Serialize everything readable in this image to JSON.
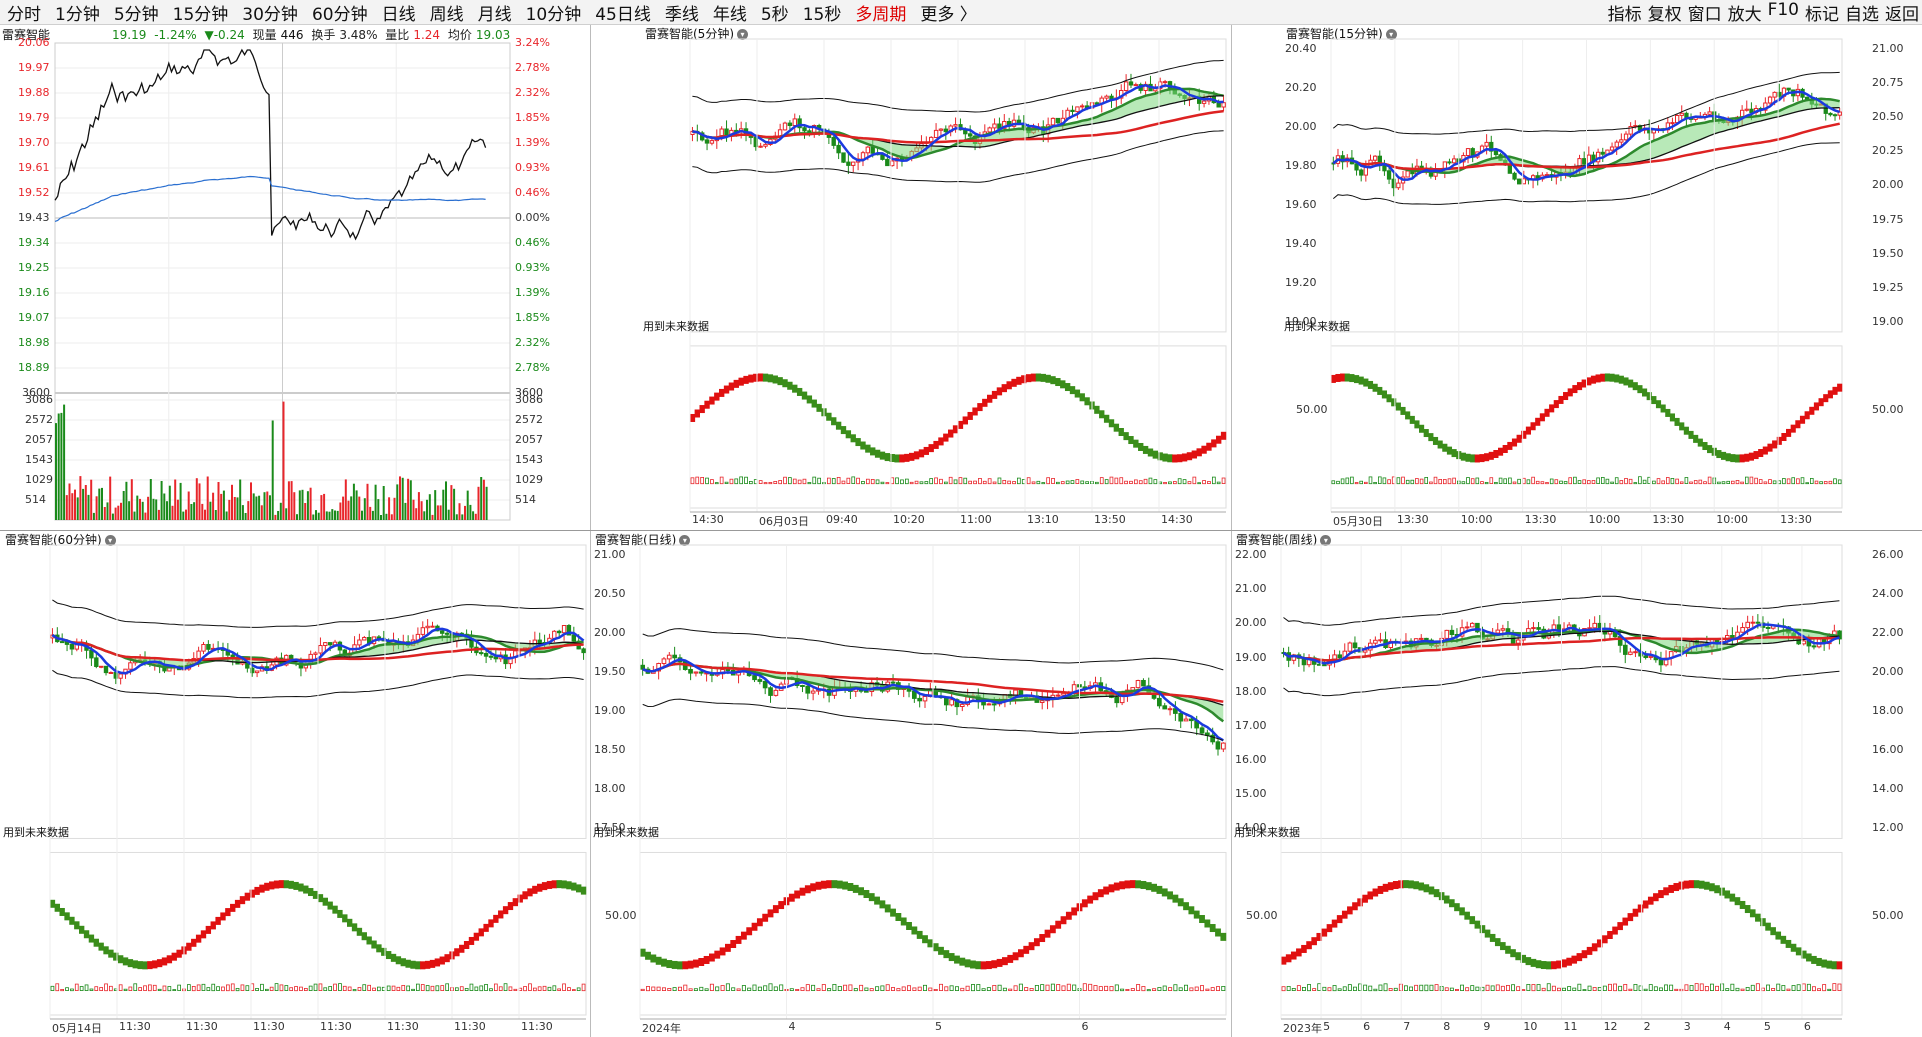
{
  "toolbar": {
    "periods": [
      "分时",
      "1分钟",
      "5分钟",
      "15分钟",
      "30分钟",
      "60分钟",
      "日线",
      "周线",
      "月线",
      "10分钟",
      "45日线",
      "季线",
      "年线",
      "5秒",
      "15秒",
      "多周期",
      "更多 〉"
    ],
    "active_period": "多周期",
    "tools": [
      "指标",
      "复权",
      "窗口",
      "放大",
      "F10",
      "标记",
      "自选",
      "返回"
    ]
  },
  "intraday": {
    "title": "雷赛智能",
    "info": {
      "price": "19.19",
      "pct": "-1.24%",
      "change": "▼-0.24",
      "vol_label": "现量",
      "vol": "446",
      "turnover_label": "换手",
      "turnover": "3.48%",
      "ratio_label": "量比",
      "ratio": "1.24",
      "avg_label": "均价",
      "avg": "19.03"
    },
    "left_axis": [
      "20.06",
      "19.97",
      "19.88",
      "19.79",
      "19.70",
      "19.61",
      "19.52",
      "19.43",
      "19.34",
      "19.25",
      "19.16",
      "19.07",
      "18.98",
      "18.89",
      "3600"
    ],
    "right_axis": [
      "3.24%",
      "2.78%",
      "2.32%",
      "1.85%",
      "1.39%",
      "0.93%",
      "0.46%",
      "0.00%",
      "0.46%",
      "0.93%",
      "1.39%",
      "1.85%",
      "2.32%",
      "2.78%",
      "3600"
    ],
    "vol_axis": [
      "3086",
      "2572",
      "2057",
      "1543",
      "1029",
      "514"
    ],
    "colors": {
      "up": "#e8262b",
      "down": "#1a8a1a",
      "avg": "#2a6fd0",
      "price": "#111111"
    }
  },
  "panels": [
    {
      "id": "p5",
      "title": "雷赛智能(5分钟)",
      "axis": [],
      "future": "用到未来数据",
      "time_labels": [
        "14:30",
        "06月03日",
        "09:40",
        "10:20",
        "11:00",
        "13:10",
        "13:50",
        "14:30"
      ],
      "osc_label": ""
    },
    {
      "id": "p15",
      "title": "雷赛智能(15分钟)",
      "axis": [
        "20.40",
        "20.20",
        "20.00",
        "19.80",
        "19.60",
        "19.40",
        "19.20",
        "19.00"
      ],
      "right_axis": [
        "21.00",
        "20.75",
        "20.50",
        "20.25",
        "20.00",
        "19.75",
        "19.50",
        "19.25",
        "19.00"
      ],
      "future": "用到未来数据",
      "time_labels": [
        "05月30日",
        "13:30",
        "10:00",
        "13:30",
        "10:00",
        "13:30",
        "10:00",
        "13:30"
      ],
      "osc_label": "50.00",
      "osc_right": "50.00"
    },
    {
      "id": "p60",
      "title": "雷赛智能(60分钟)",
      "axis": [],
      "future": "用到未来数据",
      "time_labels": [
        "05月14日",
        "11:30",
        "11:30",
        "11:30",
        "11:30",
        "11:30",
        "11:30",
        "11:30"
      ],
      "osc_label": ""
    },
    {
      "id": "pd",
      "title": "雷赛智能(日线)",
      "axis": [
        "21.00",
        "20.50",
        "20.00",
        "19.50",
        "19.00",
        "18.50",
        "18.00",
        "17.50"
      ],
      "future": "用到未来数据",
      "time_labels": [
        "2024年",
        "4",
        "5",
        "6"
      ],
      "osc_label": "50.00"
    },
    {
      "id": "pw",
      "title": "雷赛智能(周线)",
      "axis": [
        "22.00",
        "21.00",
        "20.00",
        "19.00",
        "18.00",
        "17.00",
        "16.00",
        "15.00",
        "14.00"
      ],
      "right_axis": [
        "26.00",
        "24.00",
        "22.00",
        "20.00",
        "18.00",
        "16.00",
        "14.00",
        "12.00"
      ],
      "future": "用到未来数据",
      "time_labels": [
        "2023年",
        "5",
        "6",
        "7",
        "8",
        "9",
        "10",
        "11",
        "12",
        "2",
        "3",
        "4",
        "5",
        "6"
      ],
      "osc_label": "50.00",
      "osc_right": "50.00"
    }
  ]
}
